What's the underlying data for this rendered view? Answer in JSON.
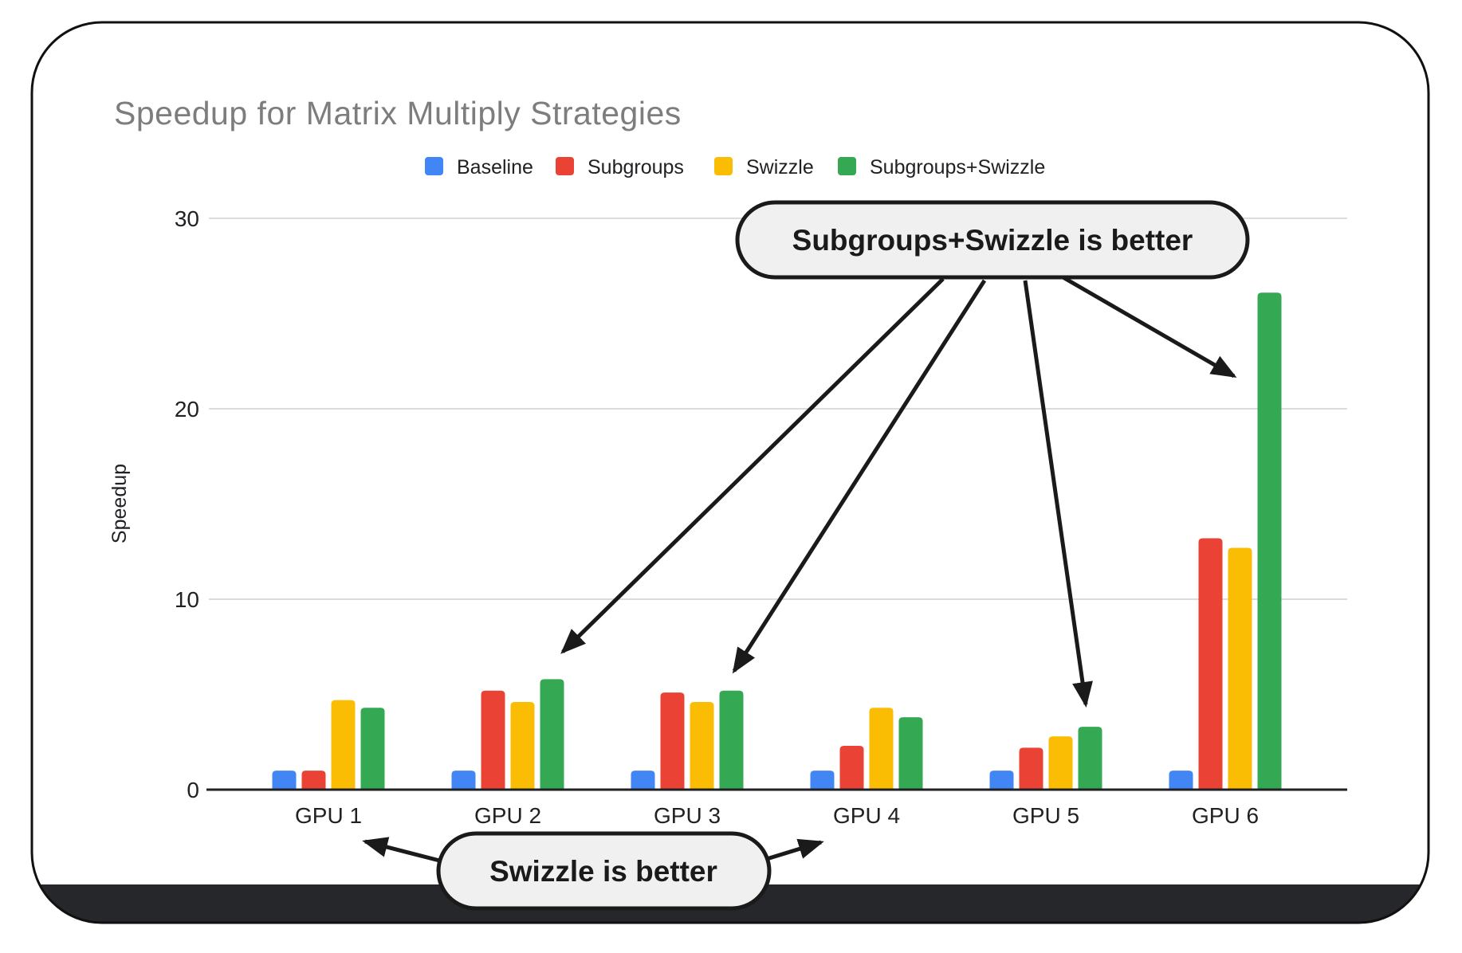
{
  "title": "Speedup for Matrix Multiply Strategies",
  "chart_data": {
    "type": "bar",
    "categories": [
      "GPU 1",
      "GPU 2",
      "GPU 3",
      "GPU 4",
      "GPU 5",
      "GPU 6"
    ],
    "series": [
      {
        "name": "Baseline",
        "color": "#4285f4",
        "values": [
          1.0,
          1.0,
          1.0,
          1.0,
          1.0,
          1.0
        ]
      },
      {
        "name": "Subgroups",
        "color": "#ea4335",
        "values": [
          1.0,
          5.2,
          5.1,
          2.3,
          2.2,
          13.2
        ]
      },
      {
        "name": "Swizzle",
        "color": "#fbbc04",
        "values": [
          4.7,
          4.6,
          4.6,
          4.3,
          2.8,
          12.7
        ]
      },
      {
        "name": "Subgroups+Swizzle",
        "color": "#34a853",
        "values": [
          4.3,
          5.8,
          5.2,
          3.8,
          3.3,
          26.1
        ]
      }
    ],
    "title": "Speedup for Matrix Multiply Strategies",
    "xlabel": "",
    "ylabel": "Speedup",
    "ylim": [
      0,
      30
    ],
    "yticks": [
      0,
      10,
      20,
      30
    ],
    "grid": true,
    "legend_position": "top"
  },
  "annotations": {
    "top_callout": {
      "label": "Subgroups+Swizzle is better",
      "targets": [
        "GPU 2",
        "GPU 3",
        "GPU 5",
        "GPU 6"
      ]
    },
    "bottom_callout": {
      "label": "Swizzle is better",
      "targets": [
        "GPU 1",
        "GPU 4"
      ]
    }
  },
  "colors": {
    "baseline": "#4285f4",
    "subgroups": "#ea4335",
    "swizzle": "#fbbc04",
    "subgroups_swizzle": "#34a853",
    "title_text": "#7d7d7d",
    "axis_text": "#202124",
    "gridline": "#dadce0",
    "axis_line": "#202124",
    "card_border": "#111111",
    "card_bottom_band": "#26272b",
    "bubble_fill": "#f0f0f1",
    "bubble_border": "#1a1a1a"
  }
}
